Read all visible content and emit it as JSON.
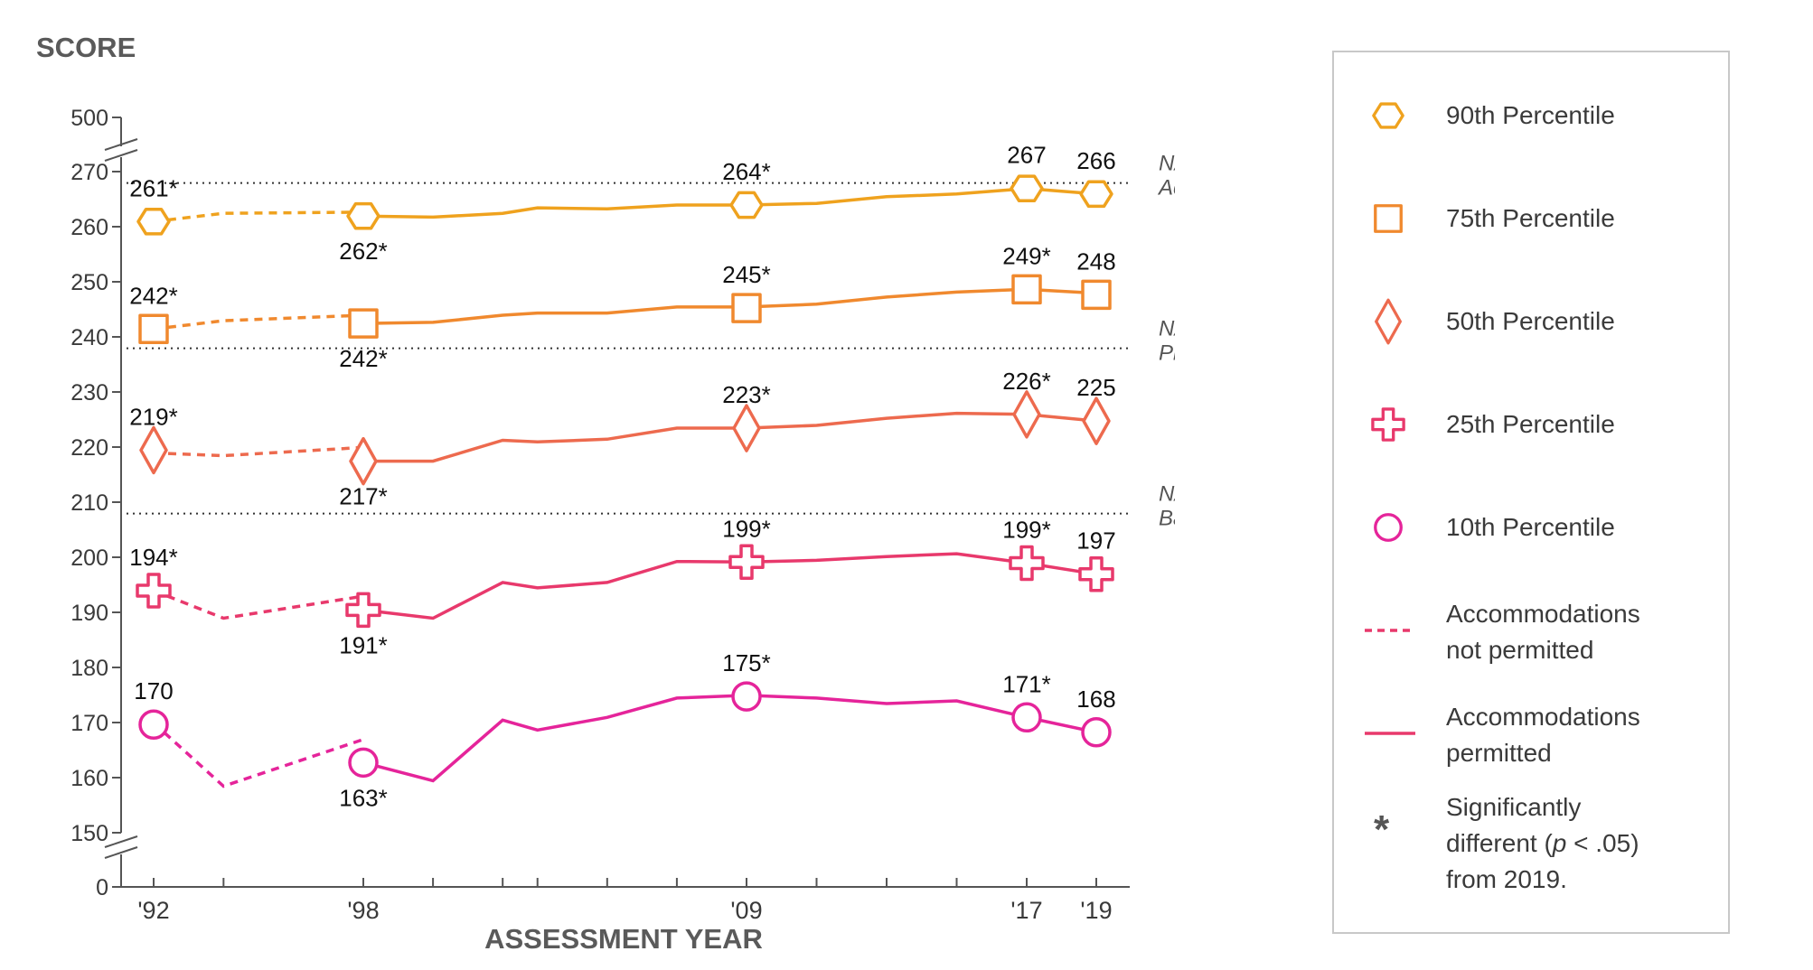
{
  "chart_data": {
    "type": "line",
    "title": "",
    "ylabel": "SCORE",
    "xlabel": "ASSESSMENT YEAR",
    "x_ticks": [
      "'92",
      "'98",
      "'09",
      "'17",
      "'19"
    ],
    "y_ticks": [
      "500",
      "270",
      "260",
      "250",
      "240",
      "230",
      "220",
      "210",
      "200",
      "190",
      "180",
      "170",
      "160",
      "150",
      "0"
    ],
    "ylim": [
      150,
      270
    ],
    "axis_break": "yes",
    "grid": false,
    "legend_position": "right",
    "reference_lines": [
      {
        "label_line1": "NAEP",
        "label_line2": "Advanced",
        "y": 268
      },
      {
        "label_line1": "NAEP",
        "label_line2": "Proficient",
        "y": 238
      },
      {
        "label_line1": "NAEP",
        "label_line2": "Basic",
        "y": 208
      }
    ],
    "series": [
      {
        "name": "90th Percentile",
        "marker": "hexagon",
        "color": "#EFA21E",
        "not_permitted": [
          {
            "x": 1992,
            "y": 261
          },
          {
            "x": 1994,
            "y": 262.5
          },
          {
            "x": 1998,
            "y": 262.7
          }
        ],
        "permitted": [
          {
            "x": 1998,
            "y": 262
          },
          {
            "x": 2000,
            "y": 261.8
          },
          {
            "x": 2002,
            "y": 262.5
          },
          {
            "x": 2003,
            "y": 263.5
          },
          {
            "x": 2005,
            "y": 263.3
          },
          {
            "x": 2007,
            "y": 264
          },
          {
            "x": 2009,
            "y": 264
          },
          {
            "x": 2011,
            "y": 264.3
          },
          {
            "x": 2013,
            "y": 265.5
          },
          {
            "x": 2015,
            "y": 266
          },
          {
            "x": 2017,
            "y": 267
          },
          {
            "x": 2019,
            "y": 266
          }
        ],
        "markers": [
          {
            "x": 1992,
            "y": 261,
            "label": "261*",
            "pos": "above"
          },
          {
            "x": 1998,
            "y": 262,
            "label": "262*",
            "pos": "below"
          },
          {
            "x": 2009,
            "y": 264,
            "label": "264*",
            "pos": "above"
          },
          {
            "x": 2017,
            "y": 267,
            "label": "267",
            "pos": "above"
          },
          {
            "x": 2019,
            "y": 266,
            "label": "266",
            "pos": "above"
          }
        ]
      },
      {
        "name": "75th Percentile",
        "marker": "square",
        "color": "#F0892E",
        "not_permitted": [
          {
            "x": 1992,
            "y": 241.5
          },
          {
            "x": 1994,
            "y": 243
          },
          {
            "x": 1998,
            "y": 244
          }
        ],
        "permitted": [
          {
            "x": 1998,
            "y": 242.5
          },
          {
            "x": 2000,
            "y": 242.7
          },
          {
            "x": 2002,
            "y": 244
          },
          {
            "x": 2003,
            "y": 244.4
          },
          {
            "x": 2005,
            "y": 244.4
          },
          {
            "x": 2007,
            "y": 245.5
          },
          {
            "x": 2009,
            "y": 245.5
          },
          {
            "x": 2011,
            "y": 246
          },
          {
            "x": 2013,
            "y": 247.3
          },
          {
            "x": 2015,
            "y": 248.2
          },
          {
            "x": 2017,
            "y": 248.7
          },
          {
            "x": 2019,
            "y": 248
          }
        ],
        "markers": [
          {
            "x": 1992,
            "y": 241.5,
            "label": "242*",
            "pos": "above"
          },
          {
            "x": 1998,
            "y": 242.5,
            "label": "242*",
            "pos": "below"
          },
          {
            "x": 2009,
            "y": 245.3,
            "label": "245*",
            "pos": "above"
          },
          {
            "x": 2017,
            "y": 248.7,
            "label": "249*",
            "pos": "above"
          },
          {
            "x": 2019,
            "y": 247.7,
            "label": "248",
            "pos": "above"
          }
        ]
      },
      {
        "name": "50th Percentile",
        "marker": "diamond",
        "color": "#ED6A4E",
        "not_permitted": [
          {
            "x": 1992,
            "y": 219
          },
          {
            "x": 1994,
            "y": 218.5
          },
          {
            "x": 1998,
            "y": 220
          }
        ],
        "permitted": [
          {
            "x": 1998,
            "y": 217.5
          },
          {
            "x": 2000,
            "y": 217.5
          },
          {
            "x": 2002,
            "y": 221.3
          },
          {
            "x": 2003,
            "y": 221
          },
          {
            "x": 2005,
            "y": 221.5
          },
          {
            "x": 2007,
            "y": 223.5
          },
          {
            "x": 2009,
            "y": 223.5
          },
          {
            "x": 2011,
            "y": 224
          },
          {
            "x": 2013,
            "y": 225.3
          },
          {
            "x": 2015,
            "y": 226.2
          },
          {
            "x": 2017,
            "y": 226
          },
          {
            "x": 2019,
            "y": 224.8
          }
        ],
        "markers": [
          {
            "x": 1992,
            "y": 219.5,
            "label": "219*",
            "pos": "above"
          },
          {
            "x": 1998,
            "y": 217.5,
            "label": "217*",
            "pos": "below"
          },
          {
            "x": 2009,
            "y": 223.5,
            "label": "223*",
            "pos": "above"
          },
          {
            "x": 2017,
            "y": 226,
            "label": "226*",
            "pos": "above"
          },
          {
            "x": 2019,
            "y": 224.8,
            "label": "225",
            "pos": "above"
          }
        ]
      },
      {
        "name": "25th Percentile",
        "marker": "cross",
        "color": "#E8396C",
        "not_permitted": [
          {
            "x": 1992,
            "y": 194
          },
          {
            "x": 1994,
            "y": 189
          },
          {
            "x": 1998,
            "y": 193
          }
        ],
        "permitted": [
          {
            "x": 1998,
            "y": 190.5
          },
          {
            "x": 2000,
            "y": 189
          },
          {
            "x": 2002,
            "y": 195.5
          },
          {
            "x": 2003,
            "y": 194.5
          },
          {
            "x": 2005,
            "y": 195.5
          },
          {
            "x": 2007,
            "y": 199.3
          },
          {
            "x": 2009,
            "y": 199.2
          },
          {
            "x": 2011,
            "y": 199.5
          },
          {
            "x": 2013,
            "y": 200.2
          },
          {
            "x": 2015,
            "y": 200.7
          },
          {
            "x": 2017,
            "y": 199
          },
          {
            "x": 2019,
            "y": 197
          }
        ],
        "markers": [
          {
            "x": 1992,
            "y": 194,
            "label": "194*",
            "pos": "above"
          },
          {
            "x": 1998,
            "y": 190.5,
            "label": "191*",
            "pos": "below"
          },
          {
            "x": 2009,
            "y": 199.2,
            "label": "199*",
            "pos": "above"
          },
          {
            "x": 2017,
            "y": 199,
            "label": "199*",
            "pos": "above"
          },
          {
            "x": 2019,
            "y": 197,
            "label": "197",
            "pos": "above"
          }
        ]
      },
      {
        "name": "10th Percentile",
        "marker": "circle",
        "color": "#E5249A",
        "not_permitted": [
          {
            "x": 1992,
            "y": 170
          },
          {
            "x": 1994,
            "y": 158.5
          },
          {
            "x": 1998,
            "y": 167
          }
        ],
        "permitted": [
          {
            "x": 1998,
            "y": 162.8
          },
          {
            "x": 2000,
            "y": 159.5
          },
          {
            "x": 2002,
            "y": 170.5
          },
          {
            "x": 2003,
            "y": 168.7
          },
          {
            "x": 2005,
            "y": 171
          },
          {
            "x": 2007,
            "y": 174.5
          },
          {
            "x": 2009,
            "y": 175
          },
          {
            "x": 2011,
            "y": 174.5
          },
          {
            "x": 2013,
            "y": 173.5
          },
          {
            "x": 2015,
            "y": 174
          },
          {
            "x": 2017,
            "y": 171
          },
          {
            "x": 2019,
            "y": 168.3
          }
        ],
        "markers": [
          {
            "x": 1992,
            "y": 169.7,
            "label": "170",
            "pos": "above"
          },
          {
            "x": 1998,
            "y": 162.8,
            "label": "163*",
            "pos": "below"
          },
          {
            "x": 2009,
            "y": 174.8,
            "label": "175*",
            "pos": "above"
          },
          {
            "x": 2017,
            "y": 171,
            "label": "171*",
            "pos": "above"
          },
          {
            "x": 2019,
            "y": 168.3,
            "label": "168",
            "pos": "above"
          }
        ]
      }
    ]
  },
  "legend": {
    "items": [
      {
        "symbol": "hexagon",
        "color": "#EFA21E",
        "line1": "90th Percentile"
      },
      {
        "symbol": "square",
        "color": "#F0892E",
        "line1": "75th Percentile"
      },
      {
        "symbol": "diamond",
        "color": "#ED6A4E",
        "line1": "50th Percentile"
      },
      {
        "symbol": "cross",
        "color": "#E8396C",
        "line1": "25th Percentile"
      },
      {
        "symbol": "circle",
        "color": "#E5249A",
        "line1": "10th Percentile"
      },
      {
        "symbol": "dashed-line",
        "color": "#E8396C",
        "line1": "Accommodations",
        "line2": "not permitted"
      },
      {
        "symbol": "solid-line",
        "color": "#E8396C",
        "line1": "Accommodations",
        "line2": "permitted"
      }
    ],
    "significance": {
      "symbol": "*",
      "line1": "Significantly",
      "line2_pre": "different (",
      "line2_italic": "p",
      "line2_post": " < .05)",
      "line3": "from 2019."
    }
  }
}
